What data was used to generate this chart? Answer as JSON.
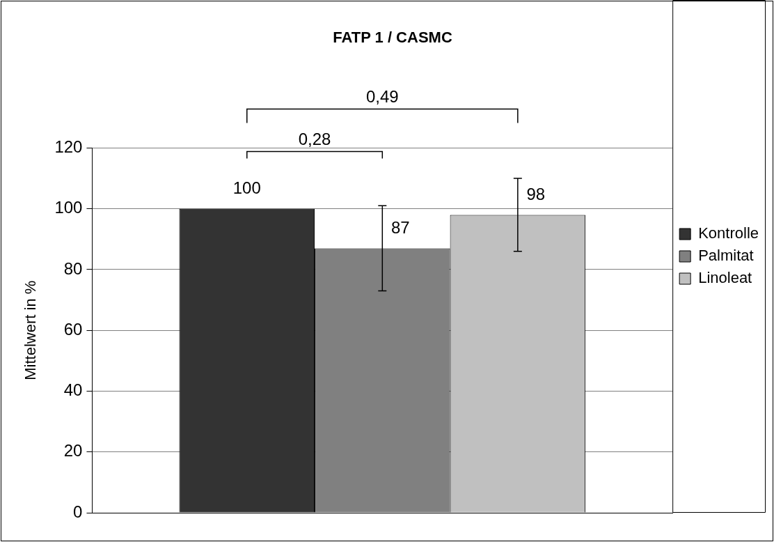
{
  "chart_data": {
    "type": "bar",
    "title": "FATP 1 / CASMC",
    "ylabel": "Mittelwert in %",
    "categories": [
      null
    ],
    "series": [
      {
        "name": "Kontrolle",
        "color": "#333333",
        "values": [
          100
        ]
      },
      {
        "name": "Palmitat",
        "color": "#808080",
        "values": [
          87
        ],
        "errors": [
          14
        ]
      },
      {
        "name": "Linoleat",
        "color": "#c0c0c0",
        "values": [
          98
        ],
        "errors": [
          12
        ]
      }
    ],
    "ylim": [
      0,
      120
    ],
    "yticks": [
      0,
      20,
      40,
      60,
      80,
      100,
      120
    ],
    "grid": "y",
    "legend": "right",
    "data_labels": true,
    "annotations": [
      "0,28",
      "0,49"
    ]
  }
}
